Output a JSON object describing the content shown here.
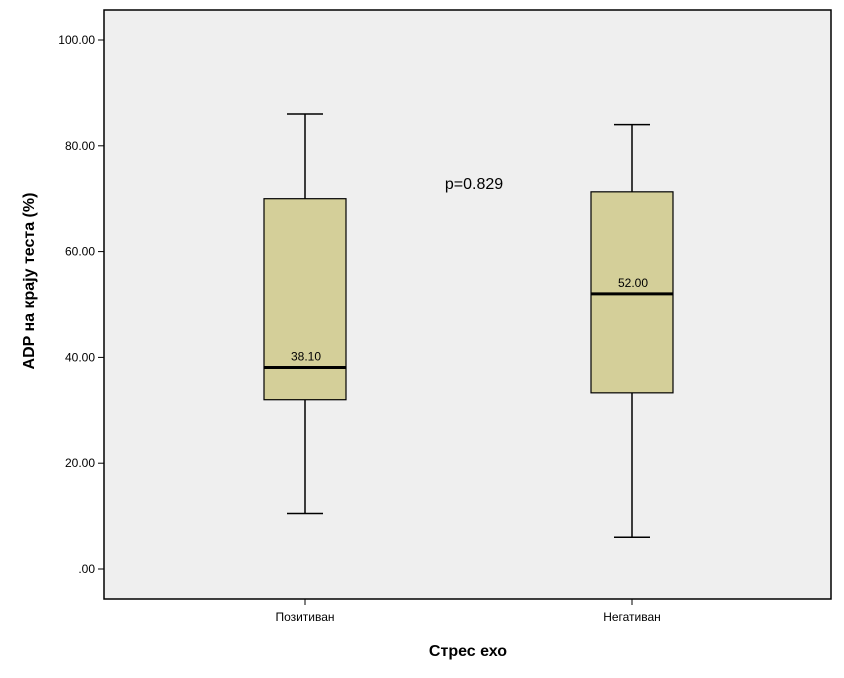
{
  "chart_data": {
    "type": "boxplot",
    "xlabel": "Стрес ехо",
    "ylabel": "ADP на крају теста  (%)",
    "ylim": [
      0,
      100
    ],
    "yticks": [
      0,
      20,
      40,
      60,
      80,
      100
    ],
    "ytick_labels": [
      ".00",
      "20.00",
      "40.00",
      "60.00",
      "80.00",
      "100.00"
    ],
    "grid": false,
    "colors": {
      "plot_background": "#efefef",
      "box_fill": "#d4cf99",
      "stroke": "#000000"
    },
    "categories": [
      "Позитиван",
      "Негативан"
    ],
    "boxes": [
      {
        "category": "Позитиван",
        "whisker_low": 10.5,
        "q1": 32.0,
        "median": 38.1,
        "q3": 70.0,
        "whisker_high": 86.0,
        "median_label": "38.10"
      },
      {
        "category": "Негативан",
        "whisker_low": 6.0,
        "q1": 33.3,
        "median": 52.0,
        "q3": 71.3,
        "whisker_high": 84.0,
        "median_label": "52.00"
      }
    ],
    "annotations": [
      {
        "text": "p=0.829"
      }
    ]
  }
}
